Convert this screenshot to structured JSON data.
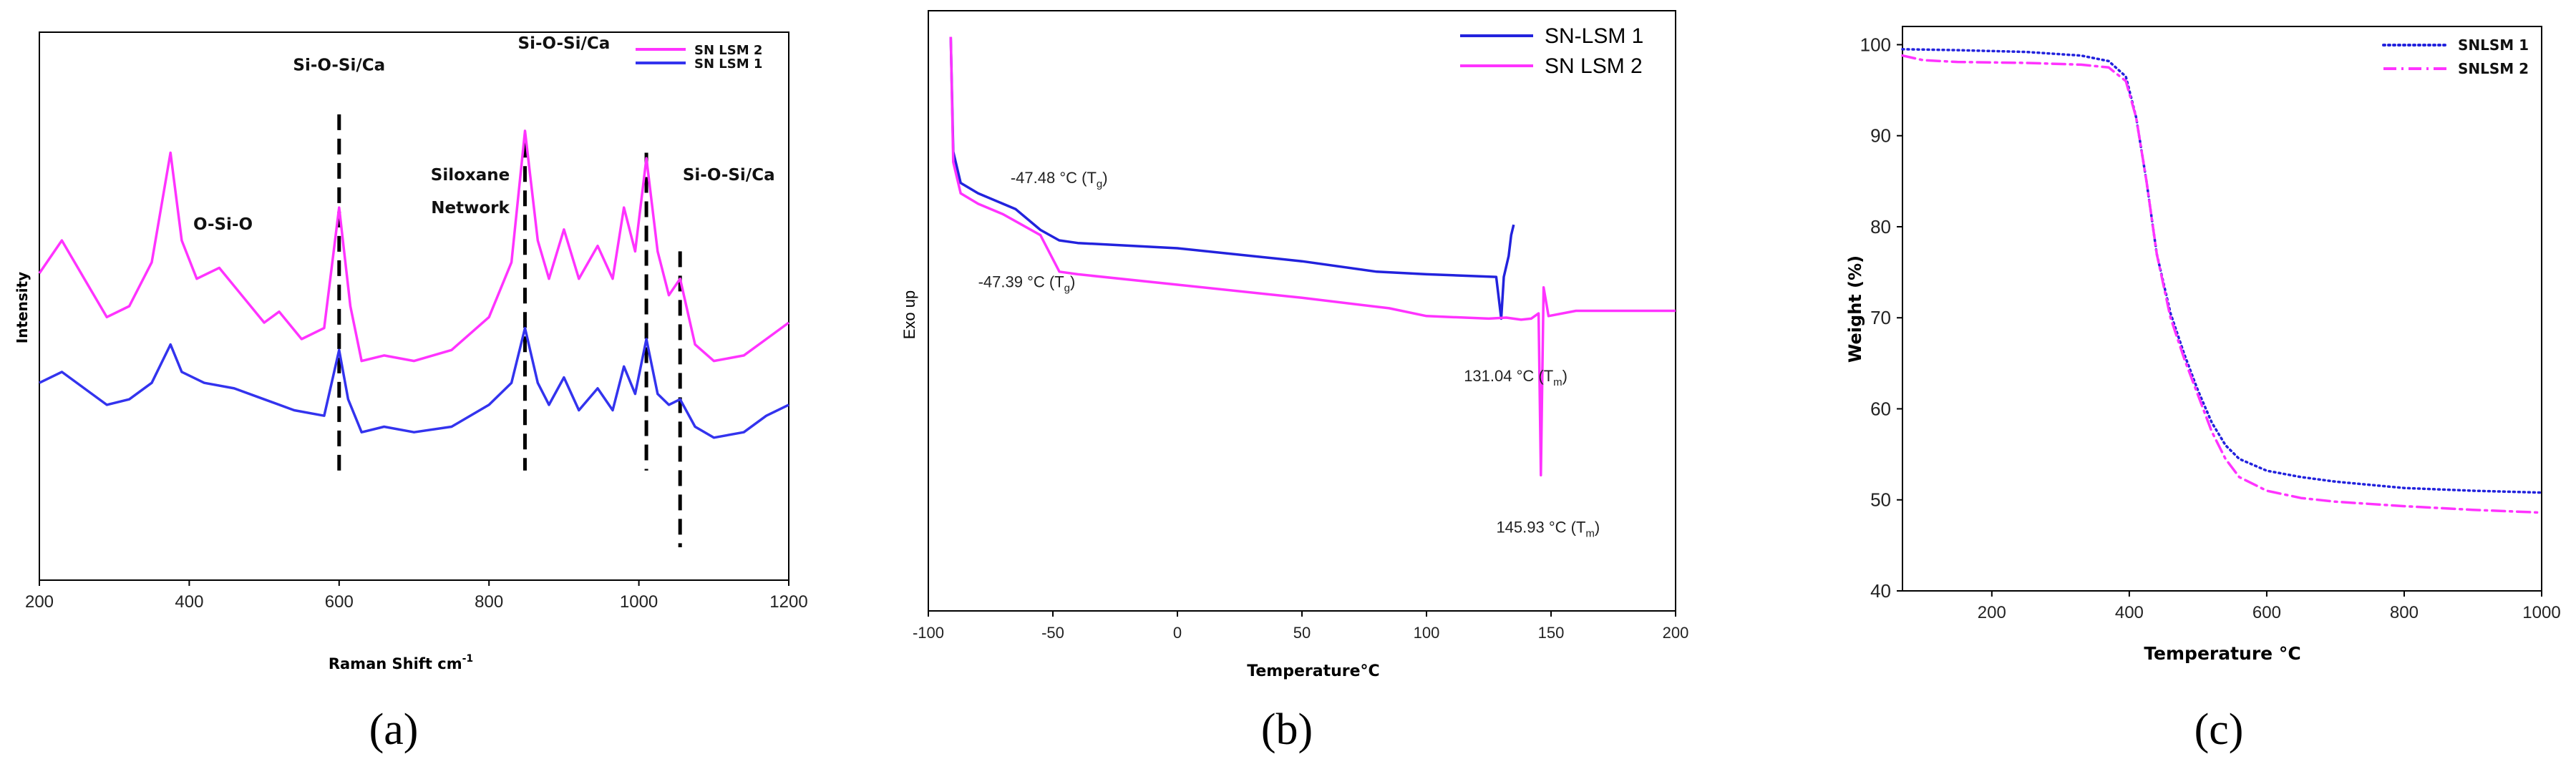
{
  "chart_data": [
    {
      "type": "line",
      "panel_label": "(a)",
      "xlabel": "Raman Shift cm",
      "xlabel_sup": "-1",
      "ylabel": "Intensity",
      "xlim": [
        200,
        1200
      ],
      "xticks": [
        200,
        400,
        600,
        800,
        1000,
        1200
      ],
      "yticks_shown": false,
      "legend_position": "top-right",
      "series": [
        {
          "name": "SN LSM 2",
          "color": "#ff33ff",
          "style": "solid",
          "points": [
            [
              200,
              0.56
            ],
            [
              230,
              0.62
            ],
            [
              260,
              0.55
            ],
            [
              290,
              0.48
            ],
            [
              320,
              0.5
            ],
            [
              350,
              0.58
            ],
            [
              375,
              0.78
            ],
            [
              390,
              0.62
            ],
            [
              410,
              0.55
            ],
            [
              440,
              0.57
            ],
            [
              470,
              0.52
            ],
            [
              500,
              0.47
            ],
            [
              520,
              0.49
            ],
            [
              550,
              0.44
            ],
            [
              580,
              0.46
            ],
            [
              600,
              0.68
            ],
            [
              615,
              0.5
            ],
            [
              630,
              0.4
            ],
            [
              660,
              0.41
            ],
            [
              700,
              0.4
            ],
            [
              750,
              0.42
            ],
            [
              800,
              0.48
            ],
            [
              830,
              0.58
            ],
            [
              848,
              0.82
            ],
            [
              865,
              0.62
            ],
            [
              880,
              0.55
            ],
            [
              900,
              0.64
            ],
            [
              920,
              0.55
            ],
            [
              945,
              0.61
            ],
            [
              965,
              0.55
            ],
            [
              980,
              0.68
            ],
            [
              995,
              0.6
            ],
            [
              1010,
              0.77
            ],
            [
              1025,
              0.6
            ],
            [
              1040,
              0.52
            ],
            [
              1055,
              0.55
            ],
            [
              1075,
              0.43
            ],
            [
              1100,
              0.4
            ],
            [
              1140,
              0.41
            ],
            [
              1170,
              0.44
            ],
            [
              1200,
              0.47
            ]
          ]
        },
        {
          "name": "SN LSM 1",
          "color": "#3333ee",
          "style": "solid",
          "points": [
            [
              200,
              0.36
            ],
            [
              230,
              0.38
            ],
            [
              260,
              0.35
            ],
            [
              290,
              0.32
            ],
            [
              320,
              0.33
            ],
            [
              350,
              0.36
            ],
            [
              375,
              0.43
            ],
            [
              390,
              0.38
            ],
            [
              420,
              0.36
            ],
            [
              460,
              0.35
            ],
            [
              500,
              0.33
            ],
            [
              540,
              0.31
            ],
            [
              580,
              0.3
            ],
            [
              600,
              0.42
            ],
            [
              612,
              0.33
            ],
            [
              630,
              0.27
            ],
            [
              660,
              0.28
            ],
            [
              700,
              0.27
            ],
            [
              750,
              0.28
            ],
            [
              800,
              0.32
            ],
            [
              830,
              0.36
            ],
            [
              848,
              0.46
            ],
            [
              865,
              0.36
            ],
            [
              880,
              0.32
            ],
            [
              900,
              0.37
            ],
            [
              920,
              0.31
            ],
            [
              945,
              0.35
            ],
            [
              965,
              0.31
            ],
            [
              980,
              0.39
            ],
            [
              995,
              0.34
            ],
            [
              1010,
              0.44
            ],
            [
              1025,
              0.34
            ],
            [
              1040,
              0.32
            ],
            [
              1055,
              0.33
            ],
            [
              1075,
              0.28
            ],
            [
              1100,
              0.26
            ],
            [
              1140,
              0.27
            ],
            [
              1170,
              0.3
            ],
            [
              1200,
              0.32
            ]
          ]
        }
      ],
      "dashed_markers": [
        600,
        848,
        1010,
        1055
      ],
      "annotations": [
        {
          "text": "Si-O-Si/Ca",
          "x": 600,
          "y": 0.93
        },
        {
          "text": "O-Si-O",
          "x": 445,
          "y": 0.64
        },
        {
          "text": "Siloxane",
          "x": 775,
          "y": 0.73
        },
        {
          "text": "Network",
          "x": 775,
          "y": 0.67
        },
        {
          "text": "Si-O-Si/Ca",
          "x": 900,
          "y": 0.97
        },
        {
          "text": "Si-O-Si/Ca",
          "x": 1120,
          "y": 0.73
        }
      ]
    },
    {
      "type": "line",
      "panel_label": "(b)",
      "xlabel": "Temperature°C",
      "ylabel": "Exo up",
      "xlim": [
        -100,
        200
      ],
      "xticks": [
        -100,
        -50,
        0,
        50,
        100,
        150,
        200
      ],
      "yticks_shown": false,
      "legend_position": "top-right",
      "series": [
        {
          "name": "SN-LSM 1",
          "color": "#2222dd",
          "style": "solid",
          "points": [
            [
              -91,
              1.0
            ],
            [
              -90,
              0.78
            ],
            [
              -87,
              0.72
            ],
            [
              -80,
              0.7
            ],
            [
              -65,
              0.67
            ],
            [
              -55,
              0.63
            ],
            [
              -47.48,
              0.61
            ],
            [
              -40,
              0.605
            ],
            [
              0,
              0.595
            ],
            [
              50,
              0.57
            ],
            [
              80,
              0.55
            ],
            [
              100,
              0.545
            ],
            [
              128,
              0.54
            ],
            [
              130,
              0.46
            ],
            [
              131.04,
              0.54
            ],
            [
              132,
              0.56
            ],
            [
              133,
              0.58
            ],
            [
              134,
              0.62
            ],
            [
              135,
              0.64
            ]
          ]
        },
        {
          "name": "SN LSM 2",
          "color": "#ff33ff",
          "style": "solid",
          "points": [
            [
              -91,
              1.0
            ],
            [
              -90,
              0.76
            ],
            [
              -87,
              0.7
            ],
            [
              -80,
              0.68
            ],
            [
              -70,
              0.66
            ],
            [
              -55,
              0.62
            ],
            [
              -47.39,
              0.55
            ],
            [
              -40,
              0.545
            ],
            [
              0,
              0.525
            ],
            [
              50,
              0.5
            ],
            [
              85,
              0.48
            ],
            [
              100,
              0.465
            ],
            [
              125,
              0.46
            ],
            [
              132,
              0.462
            ],
            [
              138,
              0.458
            ],
            [
              142,
              0.46
            ],
            [
              145,
              0.47
            ],
            [
              145.93,
              0.16
            ],
            [
              146.5,
              0.35
            ],
            [
              147,
              0.52
            ],
            [
              149,
              0.465
            ],
            [
              160,
              0.475
            ],
            [
              180,
              0.475
            ],
            [
              200,
              0.475
            ]
          ]
        }
      ],
      "annotations": [
        {
          "text": "-47.48 °C (T",
          "sub": "g",
          "x": -67,
          "y": 0.72
        },
        {
          "text": "-47.39 °C (T",
          "sub": "g",
          "x": -80,
          "y": 0.52
        },
        {
          "text": "131.04 °C (T",
          "sub": "m",
          "x": 115,
          "y": 0.34
        },
        {
          "text": "145.93 °C (T",
          "sub": "m",
          "x": 128,
          "y": 0.05
        }
      ]
    },
    {
      "type": "line",
      "panel_label": "(c)",
      "xlabel": "Temperature °C",
      "ylabel": "Weight (%)",
      "xlim": [
        70,
        1000
      ],
      "ylim": [
        40,
        102
      ],
      "xticks": [
        200,
        400,
        600,
        800,
        1000
      ],
      "yticks": [
        40,
        50,
        60,
        70,
        80,
        90,
        100
      ],
      "legend_position": "top-right",
      "series": [
        {
          "name": "SNLSM 1",
          "color": "#2222dd",
          "style": "dotted",
          "points": [
            [
              70,
              99.5
            ],
            [
              150,
              99.4
            ],
            [
              250,
              99.2
            ],
            [
              330,
              98.8
            ],
            [
              370,
              98.2
            ],
            [
              395,
              96.5
            ],
            [
              410,
              92
            ],
            [
              425,
              85
            ],
            [
              440,
              77
            ],
            [
              460,
              70.5
            ],
            [
              480,
              66
            ],
            [
              500,
              62
            ],
            [
              520,
              58.5
            ],
            [
              540,
              56
            ],
            [
              560,
              54.5
            ],
            [
              600,
              53.2
            ],
            [
              650,
              52.5
            ],
            [
              700,
              52
            ],
            [
              800,
              51.3
            ],
            [
              900,
              51
            ],
            [
              1000,
              50.8
            ]
          ]
        },
        {
          "name": "SNLSM 2",
          "color": "#ff33ff",
          "style": "dashdot",
          "points": [
            [
              70,
              98.8
            ],
            [
              100,
              98.3
            ],
            [
              150,
              98.1
            ],
            [
              250,
              98
            ],
            [
              330,
              97.8
            ],
            [
              370,
              97.5
            ],
            [
              395,
              96
            ],
            [
              410,
              92
            ],
            [
              425,
              85
            ],
            [
              440,
              77
            ],
            [
              460,
              70
            ],
            [
              480,
              65.5
            ],
            [
              500,
              61.5
            ],
            [
              520,
              57.5
            ],
            [
              540,
              54.5
            ],
            [
              560,
              52.5
            ],
            [
              600,
              51
            ],
            [
              650,
              50.2
            ],
            [
              700,
              49.8
            ],
            [
              800,
              49.3
            ],
            [
              900,
              48.9
            ],
            [
              1000,
              48.6
            ]
          ]
        }
      ]
    }
  ]
}
